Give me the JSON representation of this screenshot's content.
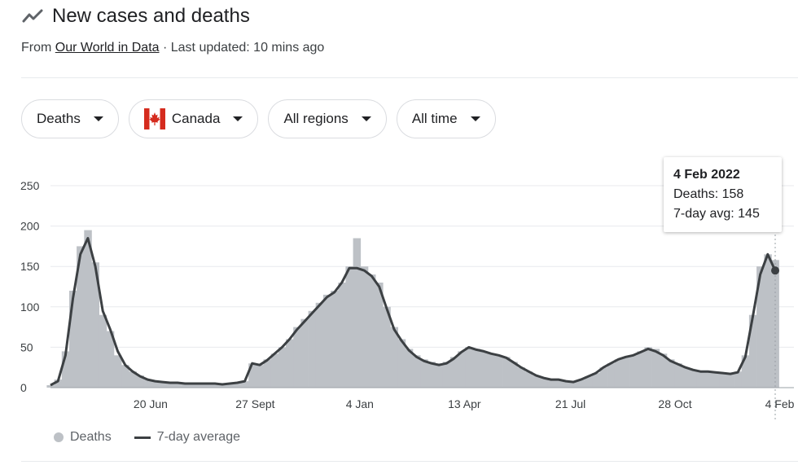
{
  "header": {
    "icon": "trend-line-icon",
    "title": "New cases and deaths",
    "source_prefix": "From ",
    "source_link": "Our World in Data",
    "updated": " · Last updated: 10 mins ago"
  },
  "filters": [
    {
      "label": "Deaths"
    },
    {
      "label": "Canada",
      "icon": "canada-flag-icon"
    },
    {
      "label": "All regions"
    },
    {
      "label": "All time"
    }
  ],
  "tooltip": {
    "date": "4 Feb 2022",
    "deaths": "Deaths: 158",
    "avg": "7-day avg: 145"
  },
  "legend": {
    "bars_label": "Deaths",
    "line_label": "7-day average"
  },
  "colors": {
    "bars": "#bdc1c6",
    "line": "#3c4043",
    "grid": "#e8eaed"
  },
  "chart_data": {
    "type": "bar",
    "ylim": [
      0,
      250
    ],
    "yticks": [
      0,
      50,
      100,
      150,
      200,
      250
    ],
    "xticks": [
      {
        "label": "20 Jun",
        "week": 13.4
      },
      {
        "label": "27 Sept",
        "week": 27.4
      },
      {
        "label": "4 Jan",
        "week": 41.4
      },
      {
        "label": "13 Apr",
        "week": 55.4
      },
      {
        "label": "21 Jul",
        "week": 69.6
      },
      {
        "label": "28 Oct",
        "week": 83.6
      },
      {
        "label": "4 Feb",
        "week": 97.6
      }
    ],
    "series": [
      {
        "name": "Deaths",
        "type": "bar",
        "weekly_values": [
          3,
          10,
          45,
          120,
          175,
          195,
          155,
          90,
          70,
          40,
          28,
          20,
          15,
          10,
          8,
          7,
          6,
          6,
          5,
          5,
          5,
          6,
          5,
          4,
          5,
          6,
          8,
          30,
          28,
          35,
          42,
          50,
          60,
          75,
          85,
          95,
          105,
          115,
          120,
          130,
          150,
          185,
          150,
          140,
          130,
          100,
          75,
          60,
          48,
          40,
          35,
          32,
          30,
          32,
          38,
          45,
          50,
          48,
          45,
          42,
          40,
          38,
          32,
          25,
          20,
          15,
          12,
          10,
          10,
          8,
          7,
          10,
          14,
          18,
          25,
          30,
          35,
          38,
          40,
          45,
          50,
          48,
          42,
          35,
          30,
          25,
          22,
          20,
          20,
          19,
          18,
          17,
          20,
          40,
          90,
          150,
          165,
          158
        ]
      },
      {
        "name": "7-day average",
        "type": "line",
        "weekly_values": [
          3,
          8,
          40,
          110,
          165,
          185,
          150,
          95,
          72,
          45,
          28,
          20,
          14,
          10,
          8,
          7,
          6,
          6,
          5,
          5,
          5,
          5,
          5,
          4,
          5,
          6,
          8,
          30,
          28,
          34,
          42,
          50,
          60,
          72,
          82,
          92,
          102,
          112,
          118,
          130,
          148,
          148,
          145,
          138,
          125,
          98,
          72,
          58,
          46,
          38,
          33,
          30,
          28,
          30,
          36,
          44,
          50,
          47,
          45,
          42,
          40,
          37,
          31,
          25,
          20,
          15,
          12,
          10,
          10,
          8,
          7,
          10,
          14,
          18,
          25,
          30,
          35,
          38,
          40,
          44,
          48,
          45,
          40,
          33,
          29,
          25,
          22,
          20,
          20,
          19,
          18,
          17,
          19,
          38,
          88,
          140,
          165,
          145
        ]
      }
    ]
  }
}
